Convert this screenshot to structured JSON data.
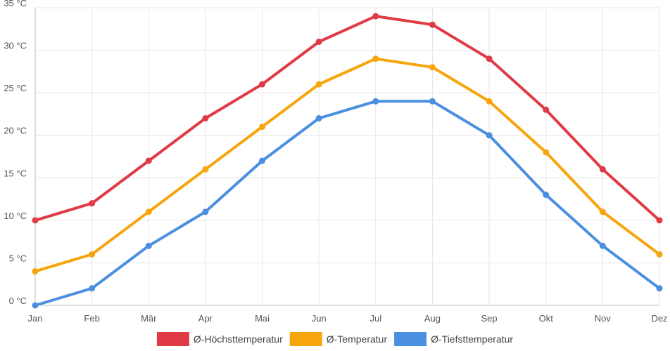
{
  "chart_data": {
    "type": "line",
    "categories": [
      "Jan",
      "Feb",
      "Mär",
      "Apr",
      "Mai",
      "Jun",
      "Jul",
      "Aug",
      "Sep",
      "Okt",
      "Nov",
      "Dez"
    ],
    "ylim": [
      0,
      35
    ],
    "ystep": 5,
    "yunit": "°C",
    "grid": true,
    "legend_position": "bottom",
    "series": [
      {
        "name": "Ø-Höchsttemperatur",
        "color": "#e03a45",
        "values": [
          10,
          12,
          17,
          22,
          26,
          31,
          34,
          33,
          29,
          23,
          16,
          10
        ]
      },
      {
        "name": "Ø-Temperatur",
        "color": "#f7a50c",
        "values": [
          4,
          6,
          11,
          16,
          21,
          26,
          29,
          28,
          24,
          18,
          11,
          6
        ]
      },
      {
        "name": "Ø-Tiefsttemperatur",
        "color": "#4a8fe0",
        "values": [
          0,
          2,
          7,
          11,
          17,
          22,
          24,
          24,
          20,
          13,
          7,
          2
        ]
      }
    ]
  }
}
